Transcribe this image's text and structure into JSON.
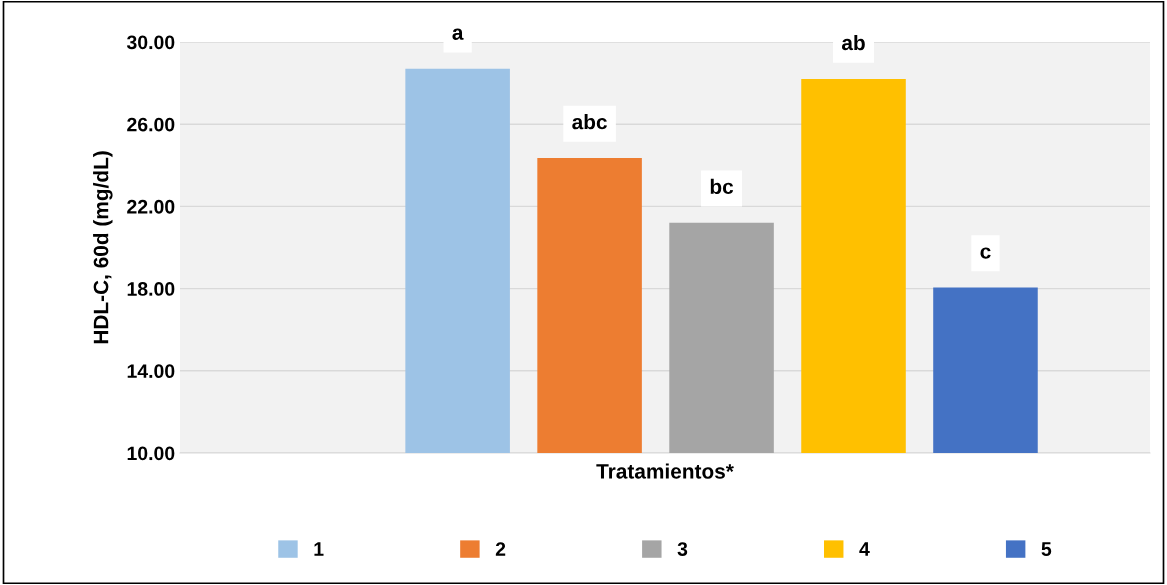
{
  "chart_data": {
    "type": "bar",
    "xlabel": "Tratamientos*",
    "ylabel": "HDL-C, 60d (mg/dL)",
    "categories": [
      null
    ],
    "series": [
      {
        "name": "1",
        "color": "#9dc3e6",
        "values": [
          28.7
        ]
      },
      {
        "name": "2",
        "color": "#ed7d31",
        "values": [
          24.35
        ]
      },
      {
        "name": "3",
        "color": "#a5a5a5",
        "values": [
          21.2
        ]
      },
      {
        "name": "4",
        "color": "#ffc000",
        "values": [
          28.2
        ]
      },
      {
        "name": "5",
        "color": "#4472c4",
        "values": [
          18.05
        ]
      }
    ],
    "annotations": [
      "a",
      "abc",
      "bc",
      "ab",
      "c"
    ],
    "ylim": [
      10,
      30
    ],
    "yticks": [
      {
        "value": 10,
        "label": "10.00"
      },
      {
        "value": 14,
        "label": "14.00"
      },
      {
        "value": 18,
        "label": "18.00"
      },
      {
        "value": 22,
        "label": "22.00"
      },
      {
        "value": 26,
        "label": "26.00"
      },
      {
        "value": 30,
        "label": "30.00"
      }
    ],
    "grid": "y",
    "legend": "bottom"
  }
}
